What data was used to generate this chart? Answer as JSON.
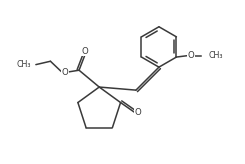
{
  "background_color": "#ffffff",
  "line_color": "#3a3a3a",
  "line_width": 1.1,
  "font_size": 6.2,
  "font_color": "#3a3a3a",
  "figsize": [
    2.45,
    1.64
  ],
  "dpi": 100,
  "xlim": [
    0,
    8.5
  ],
  "ylim": [
    0,
    5.8
  ]
}
